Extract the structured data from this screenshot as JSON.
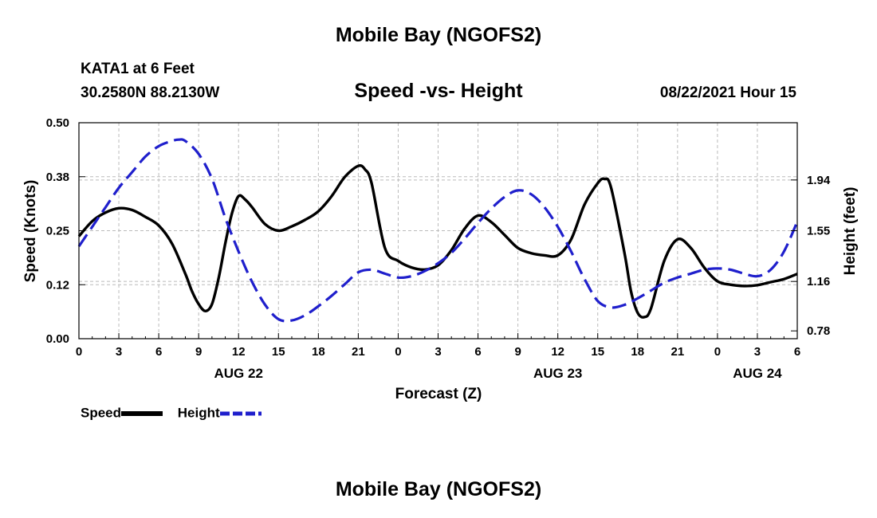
{
  "header": {
    "title": "Mobile Bay (NGOFS2)",
    "station": "KATA1 at 6 Feet",
    "coords": "30.2580N  88.2130W",
    "chart_title": "Speed -vs- Height",
    "datetime": "08/22/2021 Hour 15"
  },
  "footer": {
    "title": "Mobile Bay (NGOFS2)"
  },
  "legend": {
    "speed_label": "Speed",
    "height_label": "Height"
  },
  "colors": {
    "speed": "#000000",
    "height": "#1f1fcc",
    "grid": "#bbbbbb"
  },
  "chart_data": {
    "type": "line",
    "title": "Speed -vs- Height",
    "xlabel": "Forecast (Z)",
    "ylabel_left": "Speed (Knots)",
    "ylabel_right": "Height (feet)",
    "x_range": [
      0,
      54
    ],
    "x_ticks": [
      {
        "x": 0,
        "label": "0"
      },
      {
        "x": 3,
        "label": "3"
      },
      {
        "x": 6,
        "label": "6"
      },
      {
        "x": 9,
        "label": "9"
      },
      {
        "x": 12,
        "label": "12"
      },
      {
        "x": 15,
        "label": "15"
      },
      {
        "x": 18,
        "label": "18"
      },
      {
        "x": 21,
        "label": "21"
      },
      {
        "x": 24,
        "label": "0"
      },
      {
        "x": 27,
        "label": "3"
      },
      {
        "x": 30,
        "label": "6"
      },
      {
        "x": 33,
        "label": "9"
      },
      {
        "x": 36,
        "label": "12"
      },
      {
        "x": 39,
        "label": "15"
      },
      {
        "x": 42,
        "label": "18"
      },
      {
        "x": 45,
        "label": "21"
      },
      {
        "x": 48,
        "label": "0"
      },
      {
        "x": 51,
        "label": "3"
      },
      {
        "x": 54,
        "label": "6"
      }
    ],
    "date_labels": [
      {
        "x": 12,
        "label": "AUG 22"
      },
      {
        "x": 36,
        "label": "AUG 23"
      },
      {
        "x": 51,
        "label": "AUG 24"
      }
    ],
    "y_left": {
      "range": [
        0,
        0.5
      ],
      "ticks": [
        "0.00",
        "0.12",
        "0.25",
        "0.38",
        "0.50"
      ],
      "tick_values": [
        0,
        0.125,
        0.25,
        0.375,
        0.5
      ]
    },
    "y_right": {
      "range": [
        0.72,
        2.38
      ],
      "ticks": [
        "0.78",
        "1.16",
        "1.55",
        "1.94"
      ],
      "tick_values": [
        0.78,
        1.16,
        1.55,
        1.94
      ]
    },
    "grid": true,
    "series": [
      {
        "name": "Speed",
        "axis": "left",
        "x": [
          0,
          1,
          2,
          3,
          4,
          5,
          6,
          7,
          8,
          8.5,
          9,
          9.5,
          10,
          10.5,
          11,
          11.5,
          12,
          12.5,
          13,
          14,
          15,
          16,
          17,
          18,
          19,
          20,
          21,
          21.5,
          22,
          23,
          24,
          25,
          26,
          27,
          28,
          29,
          30,
          31,
          32,
          33,
          34,
          35,
          36,
          37,
          38,
          39,
          39.5,
          40,
          41,
          41.5,
          42,
          42.5,
          43,
          44,
          45,
          46,
          47,
          48,
          49,
          50,
          51,
          52,
          53,
          54
        ],
        "values": [
          0.237,
          0.272,
          0.292,
          0.302,
          0.298,
          0.282,
          0.262,
          0.22,
          0.15,
          0.11,
          0.08,
          0.064,
          0.08,
          0.14,
          0.22,
          0.29,
          0.33,
          0.322,
          0.305,
          0.265,
          0.25,
          0.26,
          0.275,
          0.295,
          0.33,
          0.375,
          0.4,
          0.392,
          0.36,
          0.21,
          0.18,
          0.165,
          0.16,
          0.17,
          0.205,
          0.255,
          0.285,
          0.27,
          0.24,
          0.21,
          0.198,
          0.193,
          0.193,
          0.23,
          0.31,
          0.36,
          0.37,
          0.35,
          0.2,
          0.11,
          0.06,
          0.05,
          0.07,
          0.18,
          0.23,
          0.21,
          0.165,
          0.133,
          0.125,
          0.122,
          0.124,
          0.131,
          0.138,
          0.15
        ]
      },
      {
        "name": "Height",
        "axis": "right",
        "x": [
          0,
          1,
          2,
          3,
          4,
          5,
          6,
          7,
          7.5,
          8,
          9,
          10,
          11,
          12,
          13,
          14,
          15,
          16,
          17,
          18,
          19,
          20,
          21,
          22,
          23,
          24,
          25,
          26,
          27,
          28,
          29,
          30,
          31,
          32,
          33,
          34,
          35,
          36,
          37,
          38,
          39,
          40,
          41,
          42,
          43,
          44,
          45,
          46,
          47,
          48,
          49,
          50,
          51,
          52,
          53,
          54
        ],
        "values": [
          1.43,
          1.58,
          1.73,
          1.88,
          2.0,
          2.12,
          2.2,
          2.24,
          2.25,
          2.24,
          2.14,
          1.95,
          1.65,
          1.39,
          1.16,
          0.98,
          0.87,
          0.86,
          0.9,
          0.97,
          1.05,
          1.14,
          1.23,
          1.25,
          1.22,
          1.19,
          1.2,
          1.24,
          1.3,
          1.38,
          1.49,
          1.61,
          1.72,
          1.81,
          1.86,
          1.83,
          1.73,
          1.58,
          1.39,
          1.18,
          1.01,
          0.96,
          0.98,
          1.03,
          1.09,
          1.15,
          1.19,
          1.22,
          1.25,
          1.26,
          1.25,
          1.22,
          1.2,
          1.25,
          1.39,
          1.62
        ]
      }
    ]
  }
}
